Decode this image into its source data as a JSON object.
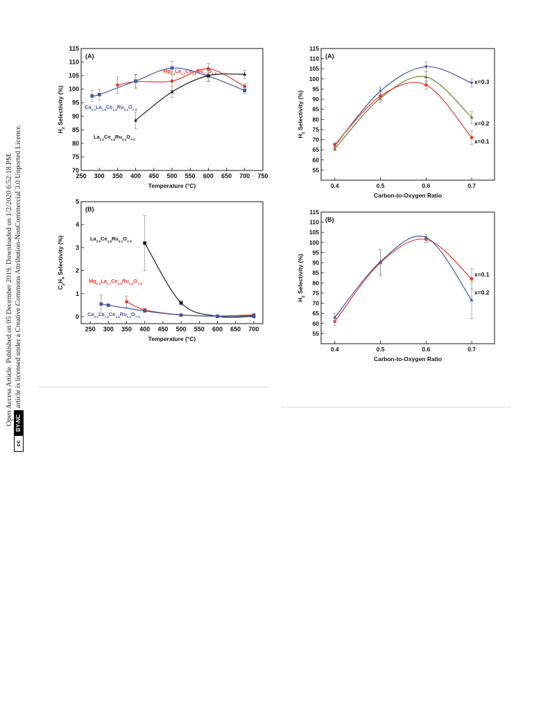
{
  "sidebar": {
    "line1": "Open Access Article. Published on 05 December 2019. Downloaded on 1/2/2020 6:52:18 PM.",
    "line2": "This article is licensed under a Creative Commons Attribution-NonCommercial 3.0 Unported Licence.",
    "badge_cc": "cc",
    "badge_text": "BY-NC"
  },
  "chart_data": [
    {
      "id": "left-A",
      "type": "line",
      "panel_label": "(A)",
      "xlabel": "Temperature (°C)",
      "ylabel": "H2 Selectivity (%)",
      "xlim": [
        250,
        750
      ],
      "ylim": [
        70,
        115
      ],
      "xticks": [
        250,
        300,
        350,
        400,
        450,
        500,
        550,
        600,
        650,
        700,
        750
      ],
      "yticks": [
        70,
        75,
        80,
        85,
        90,
        95,
        100,
        105,
        110,
        115
      ],
      "series": [
        {
          "name": "Mg0.3La1.7Ce1.8Ru0.2O7-δ",
          "color": "#e8362c",
          "marker": "circle",
          "x": [
            350,
            400,
            500,
            600,
            700
          ],
          "y": [
            101.5,
            102.8,
            103.0,
            107.5,
            101.0
          ],
          "err": [
            3.0,
            2.5,
            3.5,
            2.0,
            1.0
          ]
        },
        {
          "name": "Ca0.2La1.8Ce1.8Ru0.2O7-δ",
          "color": "#3f59a8",
          "marker": "square",
          "x": [
            280,
            300,
            400,
            500,
            600,
            700
          ],
          "y": [
            97.5,
            98.0,
            103.0,
            107.8,
            104.8,
            99.5
          ],
          "err": [
            2.0,
            2.0,
            2.5,
            2.5,
            2.0,
            1.0
          ]
        },
        {
          "name": "La2.0Ce1.8Ru0.2O7-δ",
          "color": "#1a1a1a",
          "marker": "triangle",
          "x": [
            400,
            500,
            600,
            700
          ],
          "y": [
            88.5,
            99.0,
            105.0,
            105.5
          ],
          "err": [
            3.0,
            2.0,
            2.0,
            1.5
          ]
        }
      ]
    },
    {
      "id": "left-B",
      "type": "line",
      "panel_label": "(B)",
      "xlabel": "Temperature (°C)",
      "ylabel": "C2H4 Selectivity (%)",
      "xlim": [
        225,
        725
      ],
      "ylim": [
        -0.3,
        5
      ],
      "xticks": [
        250,
        300,
        350,
        400,
        450,
        500,
        550,
        600,
        650,
        700
      ],
      "yticks": [
        0,
        1,
        2,
        3,
        4,
        5
      ],
      "series": [
        {
          "name": "La2.0Ce1.8Ru0.2O7-δ",
          "color": "#1a1a1a",
          "marker": "square",
          "x": [
            400,
            500,
            600,
            700
          ],
          "y": [
            3.2,
            0.6,
            0.02,
            0.02
          ],
          "err": [
            1.2,
            0.1,
            0.05,
            0.05
          ]
        },
        {
          "name": "Mg0.3La1.7Ce1.8Ru0.2O7-δ",
          "color": "#e8362c",
          "marker": "circle",
          "x": [
            350,
            400,
            500,
            600,
            700
          ],
          "y": [
            0.65,
            0.3,
            0.08,
            0.03,
            0.08
          ],
          "err": [
            0.25,
            0.05,
            0.03,
            0.03,
            0.05
          ]
        },
        {
          "name": "Ca0.2La1.8Ce1.8Ru0.2O7-δ",
          "color": "#3f59a8",
          "marker": "square",
          "x": [
            280,
            300,
            400,
            500,
            600,
            700
          ],
          "y": [
            0.55,
            0.5,
            0.25,
            0.07,
            0.02,
            0.05
          ],
          "err": [
            0.4,
            0.05,
            0.05,
            0.03,
            0.03,
            0.05
          ]
        }
      ]
    },
    {
      "id": "right-A",
      "type": "line",
      "panel_label": "(A)",
      "xlabel": "Carbon-to-Oxygen Ratio",
      "ylabel": "H2 Selectivity (%)",
      "xlim": [
        0.37,
        0.75
      ],
      "ylim": [
        50,
        115
      ],
      "xticks": [
        0.4,
        0.5,
        0.6,
        0.7
      ],
      "yticks": [
        55,
        60,
        65,
        70,
        75,
        80,
        85,
        90,
        95,
        100,
        105,
        110,
        115
      ],
      "series": [
        {
          "name": "x=0.3",
          "color": "#3f59a8",
          "marker": "triangle-down",
          "x": [
            0.4,
            0.5,
            0.6,
            0.7
          ],
          "y": [
            67,
            94,
            106,
            98
          ],
          "err": [
            1.0,
            2.0,
            2.5,
            2.0
          ]
        },
        {
          "name": "x=0.2",
          "color": "#6b7a2a",
          "marker": "triangle",
          "x": [
            0.4,
            0.5,
            0.6,
            0.7
          ],
          "y": [
            65.5,
            90.5,
            101,
            81
          ],
          "err": [
            1.0,
            2.0,
            2.5,
            3.0
          ]
        },
        {
          "name": "x=0.1",
          "color": "#e8362c",
          "marker": "circle",
          "x": [
            0.4,
            0.5,
            0.6,
            0.7
          ],
          "y": [
            67.5,
            91.5,
            97,
            71
          ],
          "err": [
            1.0,
            2.0,
            2.0,
            3.5
          ]
        }
      ]
    },
    {
      "id": "right-B",
      "type": "line",
      "panel_label": "(B)",
      "xlabel": "Carbon-to-Oxygen Ratio",
      "ylabel": "H2 Selectivity (%)",
      "xlim": [
        0.37,
        0.75
      ],
      "ylim": [
        50,
        115
      ],
      "xticks": [
        0.4,
        0.5,
        0.6,
        0.7
      ],
      "yticks": [
        55,
        60,
        65,
        70,
        75,
        80,
        85,
        90,
        95,
        100,
        105,
        110,
        115
      ],
      "series": [
        {
          "name": "x=0.1",
          "color": "#e8362c",
          "marker": "circle",
          "x": [
            0.4,
            0.5,
            0.6,
            0.7
          ],
          "y": [
            61,
            90,
            101.5,
            82
          ],
          "err": [
            2.0,
            6.5,
            1.5,
            5.0
          ]
        },
        {
          "name": "x=0.2",
          "color": "#3f59a8",
          "marker": "triangle",
          "x": [
            0.4,
            0.5,
            0.6,
            0.7
          ],
          "y": [
            63,
            90.5,
            102.5,
            71.5
          ],
          "err": [
            2.0,
            6.0,
            1.5,
            9.0
          ]
        }
      ]
    }
  ]
}
